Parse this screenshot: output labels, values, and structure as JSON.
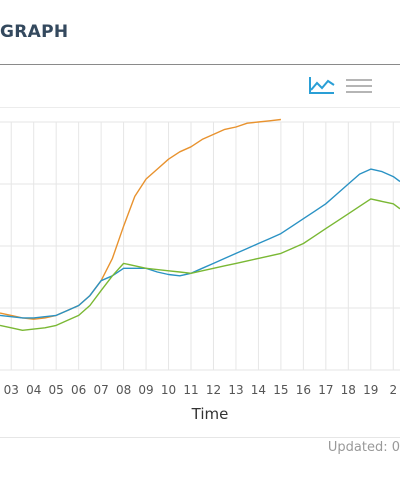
{
  "panel": {
    "title": "GRAPH"
  },
  "toolbar": {
    "line_icon": "line-chart-icon",
    "menu_icon": "hamburger-menu-icon",
    "accent": "#2a9fd6",
    "menu_color": "#b5b5b5"
  },
  "footer": {
    "updated": "Updated: 0"
  },
  "chart_data": {
    "type": "line",
    "xlabel": "Time",
    "ylabel": "",
    "title": "",
    "x_ticks": [
      "03",
      "04",
      "05",
      "06",
      "07",
      "08",
      "09",
      "10",
      "11",
      "12",
      "13",
      "14",
      "15",
      "16",
      "17",
      "18",
      "19",
      "2"
    ],
    "xlim": [
      2.5,
      20.3
    ],
    "ylim": [
      0,
      100
    ],
    "grid": true,
    "legend": "none",
    "series": [
      {
        "color": "#e8922e",
        "x": [
          2.5,
          3.0,
          3.5,
          4.0,
          4.5,
          5.0,
          5.5,
          6.0,
          6.5,
          7.0,
          7.5,
          8.0,
          8.5,
          9.0,
          9.5,
          10.0,
          10.5,
          11.0,
          11.5,
          12.0,
          12.5,
          13.0,
          13.5,
          14.0,
          14.5,
          15.0
        ],
        "y": [
          23,
          22,
          21,
          20.5,
          21,
          22,
          24,
          26,
          30,
          36,
          45,
          58,
          70,
          77,
          81,
          85,
          88,
          90,
          93,
          95,
          97,
          98,
          99.5,
          100,
          100.5,
          101
        ]
      },
      {
        "color": "#2a92c4",
        "x": [
          2.5,
          3.0,
          3.5,
          4.0,
          4.5,
          5.0,
          5.5,
          6.0,
          6.5,
          7.0,
          7.5,
          8.0,
          8.5,
          9.0,
          9.5,
          10.0,
          10.5,
          11.0,
          11.5,
          12.0,
          12.5,
          13.0,
          13.5,
          14.0,
          14.5,
          15.0,
          15.5,
          16.0,
          16.5,
          17.0,
          17.5,
          18.0,
          18.5,
          19.0,
          19.5,
          20.0,
          20.3
        ],
        "y": [
          22,
          21.5,
          21,
          21,
          21.5,
          22,
          24,
          26,
          30,
          36,
          38,
          41,
          41,
          41,
          39.5,
          38.5,
          38,
          39,
          41,
          43,
          45,
          47,
          49,
          51,
          53,
          55,
          58,
          61,
          64,
          67,
          71,
          75,
          79,
          81,
          80,
          78,
          76
        ]
      },
      {
        "color": "#7ab834",
        "x": [
          2.5,
          3.0,
          3.5,
          4.0,
          4.5,
          5.0,
          5.5,
          6.0,
          6.5,
          7.0,
          7.5,
          8.0,
          8.5,
          9.0,
          9.5,
          10.0,
          10.5,
          11.0,
          11.5,
          12.0,
          12.5,
          13.0,
          13.5,
          14.0,
          14.5,
          15.0,
          15.5,
          16.0,
          16.5,
          17.0,
          17.5,
          18.0,
          18.5,
          19.0,
          19.5,
          20.0,
          20.3
        ],
        "y": [
          18,
          17,
          16,
          16.5,
          17,
          18,
          20,
          22,
          26,
          32,
          38,
          43,
          42,
          41,
          40.5,
          40,
          39.5,
          39,
          40,
          41,
          42,
          43,
          44,
          45,
          46,
          47,
          49,
          51,
          54,
          57,
          60,
          63,
          66,
          69,
          68,
          67,
          65
        ]
      }
    ]
  }
}
